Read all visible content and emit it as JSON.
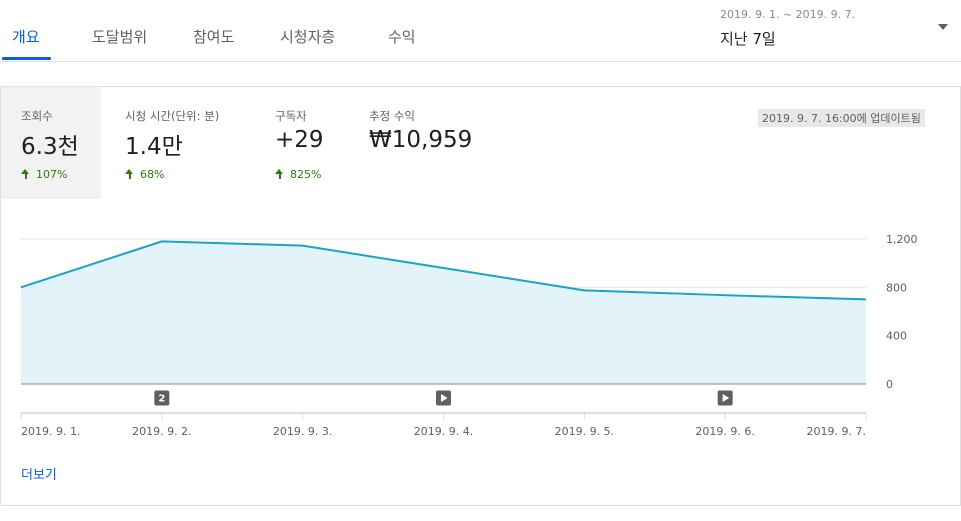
{
  "tabs": [
    {
      "label": "개요",
      "active": true
    },
    {
      "label": "도달범위",
      "active": false
    },
    {
      "label": "참여도",
      "active": false
    },
    {
      "label": "시청자층",
      "active": false
    },
    {
      "label": "수익",
      "active": false
    }
  ],
  "date_picker": {
    "range": "2019. 9. 1. ~ 2019. 9. 7.",
    "label": "지난 7일"
  },
  "metrics": [
    {
      "label": "조회수",
      "value": "6.3천",
      "delta": "107%",
      "selected": true
    },
    {
      "label": "시청 시간(단위: 분)",
      "value": "1.4만",
      "delta": "68%"
    },
    {
      "label": "구독자",
      "value": "+29",
      "delta": "825%"
    },
    {
      "label": "추정 수익",
      "value": "₩10,959",
      "delta": ""
    }
  ],
  "updated_text": "2019. 9. 7. 16:00에 업데이트됨",
  "colors": {
    "accent": "#065fd4",
    "line": "#1aa3c8",
    "area": "#e2f4f9",
    "positive": "#2b7a0b"
  },
  "chart_data": {
    "type": "area",
    "x": [
      "2019. 9. 1.",
      "2019. 9. 2.",
      "2019. 9. 3.",
      "2019. 9. 4.",
      "2019. 9. 5.",
      "2019. 9. 6.",
      "2019. 9. 7."
    ],
    "series": [
      {
        "values": [
          800,
          1180,
          1145,
          960,
          775,
          735,
          700
        ]
      }
    ],
    "ylim": [
      0,
      1200
    ],
    "yticks": [
      0,
      400,
      800,
      1200
    ],
    "ytick_labels": [
      "0",
      "400",
      "800",
      "1,200"
    ],
    "grid": true,
    "markers": [
      {
        "x": "2019. 9. 2.",
        "type": "count",
        "label": "2"
      },
      {
        "x": "2019. 9. 4.",
        "type": "video"
      },
      {
        "x": "2019. 9. 6.",
        "type": "video"
      }
    ]
  },
  "more_label": "더보기"
}
